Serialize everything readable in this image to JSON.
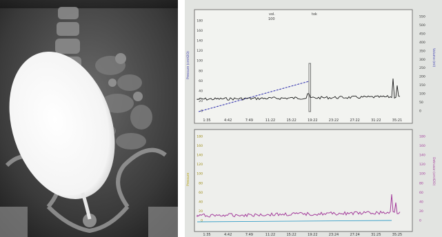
{
  "figure": {
    "left_panel": {
      "name": "voiding-cystourethrogram-xray"
    },
    "right_panel": {
      "name": "urodynamic-tracing",
      "top_chart": {
        "header_left": "vol.",
        "header_left_value": "100",
        "header_right": "tok",
        "left_axis_label": "Pressure (cmH2O)",
        "right_axis_label": "Volume (ml)",
        "left_ticks": [
          "180",
          "160",
          "140",
          "120",
          "100",
          "80",
          "60",
          "40",
          "20",
          "0"
        ],
        "right_ticks": [
          "550",
          "500",
          "450",
          "400",
          "350",
          "300",
          "250",
          "200",
          "150",
          "100",
          "50",
          "0"
        ],
        "x_ticks": [
          "1:35",
          "4:42",
          "7:49",
          "11:22",
          "15:22",
          "19:22",
          "23:22",
          "27:22",
          "31:22",
          "35:21"
        ],
        "colors": {
          "pressure": "#1c1c1c",
          "volume": "#3a3ab0",
          "marker": "#555555"
        }
      },
      "bottom_chart": {
        "left_axis_label": "Pressure",
        "right_axis_label": "Detrusor (cmH2O)",
        "left_ticks": [
          "180",
          "160",
          "140",
          "120",
          "100",
          "80",
          "60",
          "40",
          "20",
          "0"
        ],
        "right_ticks": [
          "180",
          "160",
          "140",
          "120",
          "100",
          "80",
          "60",
          "40",
          "20",
          "0"
        ],
        "x_ticks": [
          "1:35",
          "4:42",
          "7:49",
          "11:22",
          "15:22",
          "19:22",
          "23:24",
          "27:24",
          "31:25",
          "35:25"
        ],
        "colors": {
          "pressure": "#a23a9a",
          "baseline": "#3aa0c8"
        }
      }
    }
  }
}
